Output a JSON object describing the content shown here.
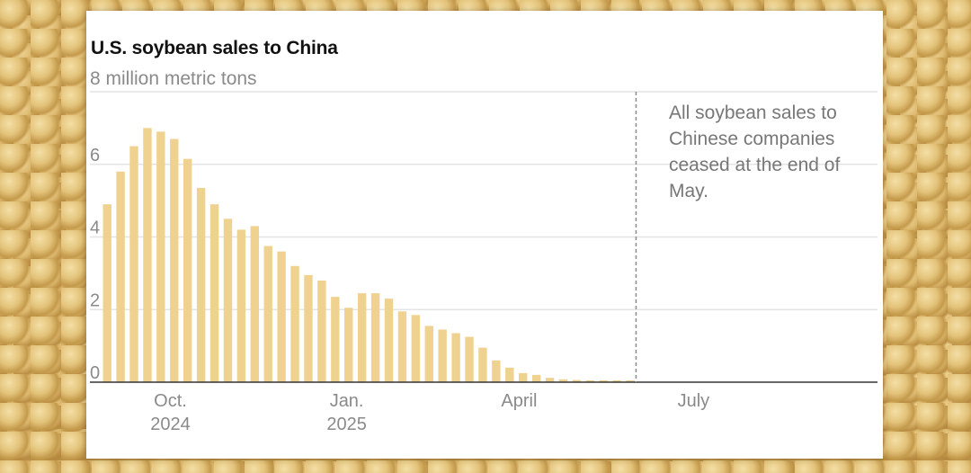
{
  "chart_data": {
    "type": "bar",
    "title": "U.S. soybean sales to China",
    "ylabel": "8 million metric tons",
    "ylim": [
      0,
      8
    ],
    "y_ticks": [
      {
        "value": 8,
        "label": ""
      },
      {
        "value": 6,
        "label": "6"
      },
      {
        "value": 4,
        "label": "4"
      },
      {
        "value": 2,
        "label": "2"
      },
      {
        "value": 0,
        "label": "0"
      }
    ],
    "grid": true,
    "x_ticks": [
      {
        "date": "2024-10-01",
        "line1": "Oct.",
        "line2": "2024"
      },
      {
        "date": "2025-01-01",
        "line1": "Jan.",
        "line2": "2025"
      },
      {
        "date": "2025-04-01",
        "line1": "April",
        "line2": ""
      },
      {
        "date": "2025-07-01",
        "line1": "July",
        "line2": ""
      }
    ],
    "x_range": [
      "2024-08-20",
      "2025-10-05"
    ],
    "bar_color": "#efd290",
    "series": [
      {
        "x": [
          "2024-08-29",
          "2024-09-05",
          "2024-09-12",
          "2024-09-19",
          "2024-09-26",
          "2024-10-03",
          "2024-10-10",
          "2024-10-17",
          "2024-10-24",
          "2024-10-31",
          "2024-11-07",
          "2024-11-14",
          "2024-11-21",
          "2024-11-28",
          "2024-12-05",
          "2024-12-12",
          "2024-12-19",
          "2024-12-26",
          "2025-01-02",
          "2025-01-09",
          "2025-01-16",
          "2025-01-23",
          "2025-01-30",
          "2025-02-06",
          "2025-02-13",
          "2025-02-20",
          "2025-02-27",
          "2025-03-06",
          "2025-03-13",
          "2025-03-20",
          "2025-03-27",
          "2025-04-03",
          "2025-04-10",
          "2025-04-17",
          "2025-04-24",
          "2025-05-01",
          "2025-05-08",
          "2025-05-15",
          "2025-05-22",
          "2025-05-29"
        ],
        "values": [
          4.9,
          5.8,
          6.5,
          7.0,
          6.9,
          6.7,
          6.15,
          5.35,
          4.9,
          4.5,
          4.2,
          4.3,
          3.75,
          3.6,
          3.2,
          2.95,
          2.8,
          2.35,
          2.05,
          2.45,
          2.45,
          2.3,
          1.95,
          1.85,
          1.55,
          1.45,
          1.35,
          1.25,
          0.95,
          0.6,
          0.4,
          0.25,
          0.2,
          0.12,
          0.08,
          0.06,
          0.05,
          0.05,
          0.05,
          0.05
        ]
      }
    ],
    "annotation": {
      "date": "2025-06-01",
      "text": "All soybean sales to Chinese companies ceased at the end of May."
    }
  }
}
